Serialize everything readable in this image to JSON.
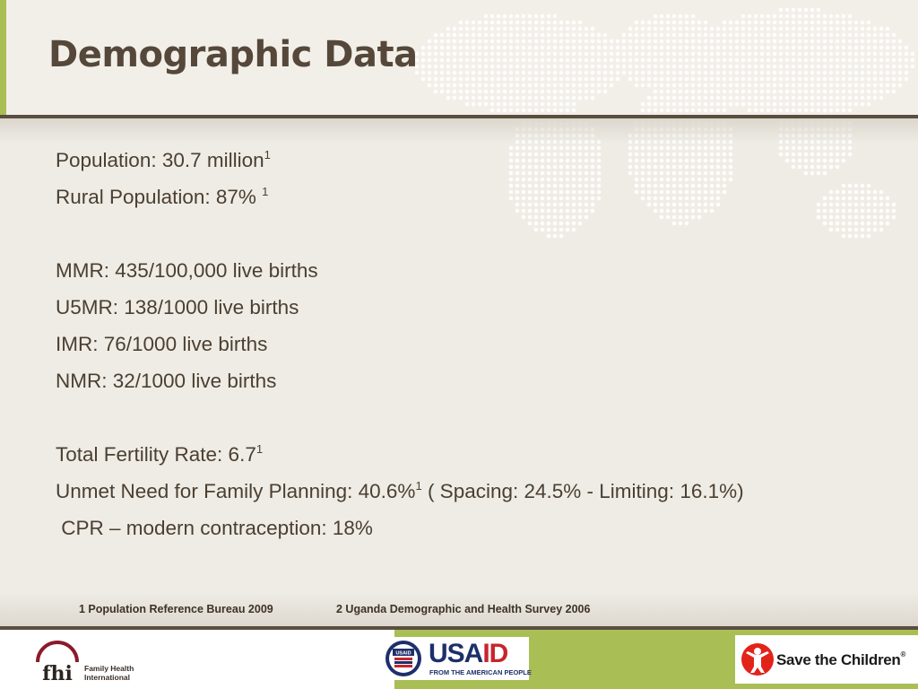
{
  "slide": {
    "title": "Demographic Data",
    "lines": [
      {
        "text": "Population: 30.7 million",
        "sup": "1"
      },
      {
        "text": "Rural Population:  87% ",
        "sup": "1"
      },
      {
        "text": "",
        "sup": ""
      },
      {
        "text": "MMR: 435/100,000 live births",
        "sup": ""
      },
      {
        "text": "U5MR: 138/1000 live births",
        "sup": ""
      },
      {
        "text": "IMR: 76/1000 live births",
        "sup": ""
      },
      {
        "text": "NMR: 32/1000 live births",
        "sup": ""
      },
      {
        "text": "",
        "sup": ""
      },
      {
        "text": "Total Fertility Rate: 6.7",
        "sup": "1"
      },
      {
        "text": "Unmet Need for Family Planning: 40.6%",
        "sup": "1",
        "after": " ( Spacing: 24.5%   - Limiting:  16.1%)"
      },
      {
        "text": " CPR – modern contraception: 18%",
        "sup": ""
      }
    ],
    "footnotes": [
      "1 Population Reference Bureau  2009",
      "2 Uganda Demographic and Health Survey 2006"
    ]
  },
  "footer": {
    "fhi": {
      "mark": "fhi",
      "line1": "Family Health",
      "line2": "International"
    },
    "usaid": {
      "usa": "USA",
      "id": "ID",
      "tagline": "FROM THE AMERICAN PEOPLE",
      "seal_text": "USAID"
    },
    "save_the_children": {
      "name": "Save the Children",
      "reg": "®"
    }
  },
  "colors": {
    "accent_green": "#a9bf56",
    "rule_brown": "#5a4e41",
    "title_brown": "#55483a",
    "usaid_blue": "#1d2f6b",
    "usaid_red": "#c7242c",
    "stc_red": "#e2231a",
    "fhi_red": "#8b1a2b"
  }
}
